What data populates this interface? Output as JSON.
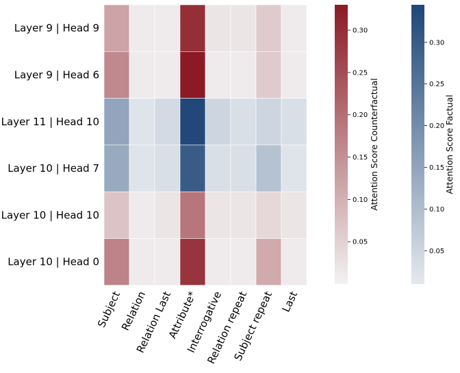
{
  "chart_data": {
    "type": "heatmap",
    "rows": [
      "Layer 9 | Head 9",
      "Layer 9 | Head 6",
      "Layer 11 | Head 10",
      "Layer 10 | Head 7",
      "Layer 10 | Head 10",
      "Layer 10 | Head 0"
    ],
    "columns": [
      "Subject",
      "Relation",
      "Relation Last",
      "Attribute*",
      "Interrogative",
      "Relation repeat",
      "Subject repeat",
      "Last"
    ],
    "row_colormap": [
      "counterfactual",
      "counterfactual",
      "factual",
      "factual",
      "counterfactual",
      "counterfactual"
    ],
    "values": [
      [
        0.12,
        0.01,
        0.01,
        0.3,
        0.02,
        0.02,
        0.06,
        0.01
      ],
      [
        0.16,
        0.01,
        0.01,
        0.33,
        0.01,
        0.01,
        0.06,
        0.01
      ],
      [
        0.15,
        0.02,
        0.04,
        0.34,
        0.05,
        0.03,
        0.05,
        0.03
      ],
      [
        0.14,
        0.02,
        0.03,
        0.3,
        0.03,
        0.03,
        0.09,
        0.02
      ],
      [
        0.07,
        0.01,
        0.02,
        0.19,
        0.02,
        0.02,
        0.04,
        0.02
      ],
      [
        0.17,
        0.01,
        0.01,
        0.29,
        0.01,
        0.01,
        0.11,
        0.01
      ]
    ],
    "colorbars": [
      {
        "name": "counterfactual",
        "label": "Attention Score Counterfactual",
        "range": [
          0.0,
          0.33
        ],
        "ticks": [
          0.05,
          0.1,
          0.15,
          0.2,
          0.25,
          0.3
        ],
        "tick_labels": [
          "0.05",
          "0.10",
          "0.15",
          "0.20",
          "0.25",
          "0.30"
        ],
        "color_low": "#f2f2f2",
        "color_high": "#8b1a24"
      },
      {
        "name": "factual",
        "label": "Attention Score Factual",
        "range": [
          0.01,
          0.345
        ],
        "ticks": [
          0.05,
          0.1,
          0.15,
          0.2,
          0.25,
          0.3
        ],
        "tick_labels": [
          "0.05",
          "0.10",
          "0.15",
          "0.20",
          "0.25",
          "0.30"
        ],
        "color_low": "#e5e9ee",
        "color_high": "#1e4677"
      }
    ]
  }
}
